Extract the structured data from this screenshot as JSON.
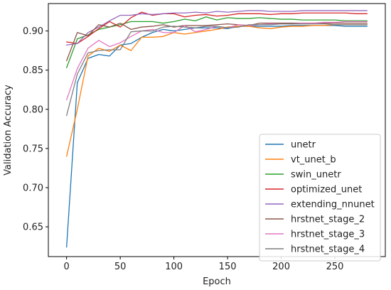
{
  "chart_data": {
    "type": "line",
    "xlabel": "Epoch",
    "ylabel": "Validation Accuracy",
    "xlim": [
      -17,
      297
    ],
    "ylim": [
      0.612,
      0.935
    ],
    "xticks": [
      0,
      50,
      100,
      150,
      200,
      250
    ],
    "yticks": [
      0.65,
      0.7,
      0.75,
      0.8,
      0.85,
      0.9
    ],
    "ytick_labels": [
      "0.65",
      "0.70",
      "0.75",
      "0.80",
      "0.85",
      "0.90"
    ],
    "grid": false,
    "legend": "lower-right",
    "x": [
      0,
      10,
      20,
      30,
      40,
      50,
      60,
      70,
      80,
      90,
      100,
      110,
      120,
      130,
      140,
      150,
      160,
      170,
      180,
      190,
      200,
      210,
      220,
      230,
      240,
      250,
      260,
      270,
      280
    ],
    "series": [
      {
        "name": "unetr",
        "color": "#1f77b4",
        "values": [
          0.624,
          0.834,
          0.865,
          0.87,
          0.868,
          0.882,
          0.884,
          0.892,
          0.898,
          0.902,
          0.9,
          0.902,
          0.904,
          0.904,
          0.904,
          0.903,
          0.906,
          0.906,
          0.906,
          0.906,
          0.906,
          0.907,
          0.907,
          0.907,
          0.907,
          0.907,
          0.906,
          0.906,
          0.906
        ]
      },
      {
        "name": "vt_unet_b",
        "color": "#ff7f0e",
        "values": [
          0.74,
          0.8,
          0.868,
          0.878,
          0.874,
          0.882,
          0.875,
          0.892,
          0.892,
          0.893,
          0.898,
          0.896,
          0.898,
          0.9,
          0.902,
          0.905,
          0.906,
          0.906,
          0.904,
          0.903,
          0.905,
          0.906,
          0.906,
          0.907,
          0.907,
          0.908,
          0.908,
          0.908,
          0.908
        ]
      },
      {
        "name": "swin_unetr",
        "color": "#2ca02c",
        "values": [
          0.853,
          0.89,
          0.895,
          0.902,
          0.905,
          0.908,
          0.912,
          0.912,
          0.912,
          0.91,
          0.912,
          0.915,
          0.913,
          0.918,
          0.914,
          0.917,
          0.916,
          0.916,
          0.917,
          0.916,
          0.915,
          0.915,
          0.914,
          0.914,
          0.914,
          0.914,
          0.913,
          0.913,
          0.913
        ]
      },
      {
        "name": "optimized_unet",
        "color": "#d62728",
        "values": [
          0.886,
          0.884,
          0.893,
          0.903,
          0.912,
          0.905,
          0.917,
          0.924,
          0.92,
          0.922,
          0.922,
          0.918,
          0.92,
          0.921,
          0.919,
          0.92,
          0.922,
          0.922,
          0.922,
          0.921,
          0.922,
          0.922,
          0.923,
          0.923,
          0.923,
          0.923,
          0.923,
          0.922,
          0.922
        ]
      },
      {
        "name": "extending_nnunet",
        "color": "#9467bd",
        "values": [
          0.882,
          0.884,
          0.898,
          0.905,
          0.913,
          0.92,
          0.92,
          0.922,
          0.921,
          0.922,
          0.923,
          0.923,
          0.924,
          0.923,
          0.925,
          0.924,
          0.925,
          0.926,
          0.926,
          0.925,
          0.925,
          0.925,
          0.926,
          0.926,
          0.926,
          0.926,
          0.926,
          0.926,
          0.926
        ]
      },
      {
        "name": "hrstnet_stage_2",
        "color": "#8c564b",
        "values": [
          0.862,
          0.898,
          0.894,
          0.908,
          0.905,
          0.91,
          0.902,
          0.905,
          0.906,
          0.908,
          0.905,
          0.907,
          0.907,
          0.907,
          0.908,
          0.909,
          0.908,
          0.907,
          0.91,
          0.91,
          0.91,
          0.91,
          0.91,
          0.91,
          0.91,
          0.91,
          0.91,
          0.91,
          0.91
        ]
      },
      {
        "name": "hrstnet_stage_3",
        "color": "#e377c2",
        "values": [
          0.812,
          0.852,
          0.878,
          0.888,
          0.88,
          0.885,
          0.893,
          0.9,
          0.902,
          0.898,
          0.898,
          0.907,
          0.899,
          0.902,
          0.906,
          0.904,
          0.908,
          0.907,
          0.908,
          0.909,
          0.909,
          0.909,
          0.91,
          0.91,
          0.911,
          0.911,
          0.912,
          0.912,
          0.912
        ]
      },
      {
        "name": "hrstnet_stage_4",
        "color": "#7f7f7f",
        "values": [
          0.792,
          0.845,
          0.872,
          0.875,
          0.876,
          0.876,
          0.899,
          0.9,
          0.9,
          0.905,
          0.906,
          0.905,
          0.904,
          0.906,
          0.906,
          0.904,
          0.905,
          0.908,
          0.908,
          0.908,
          0.909,
          0.909,
          0.909,
          0.909,
          0.909,
          0.908,
          0.908,
          0.908,
          0.908
        ]
      }
    ]
  }
}
